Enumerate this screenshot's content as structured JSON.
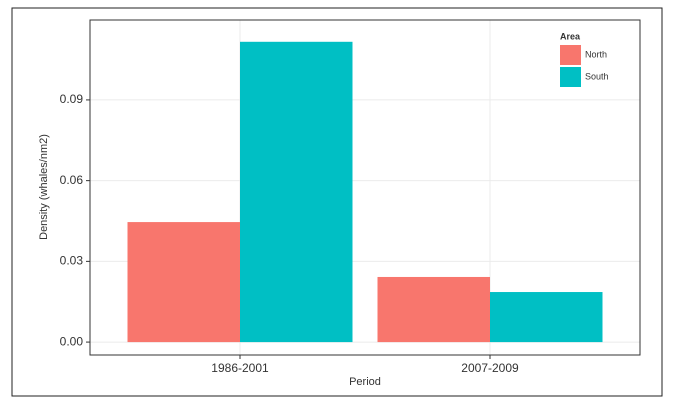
{
  "chart_data": {
    "type": "bar",
    "categories": [
      "1986-2001",
      "2007-2009"
    ],
    "series": [
      {
        "name": "North",
        "color": "#f8766d",
        "values": [
          0.0446,
          0.0242
        ]
      },
      {
        "name": "South",
        "color": "#00bfc4",
        "values": [
          0.1116,
          0.0186
        ]
      }
    ],
    "x_label": "Period",
    "y_label": "Density (whales/nm2)",
    "legend_title": "Area",
    "ylim": [
      -0.0048,
      0.1197
    ],
    "yticks": [
      {
        "value": 0,
        "label": "0.00"
      },
      {
        "value": 0.03,
        "label": "0.03"
      },
      {
        "value": 0.06,
        "label": "0.06"
      },
      {
        "value": 0.09,
        "label": "0.09"
      }
    ],
    "grid": true,
    "legend_position": "top-right"
  }
}
